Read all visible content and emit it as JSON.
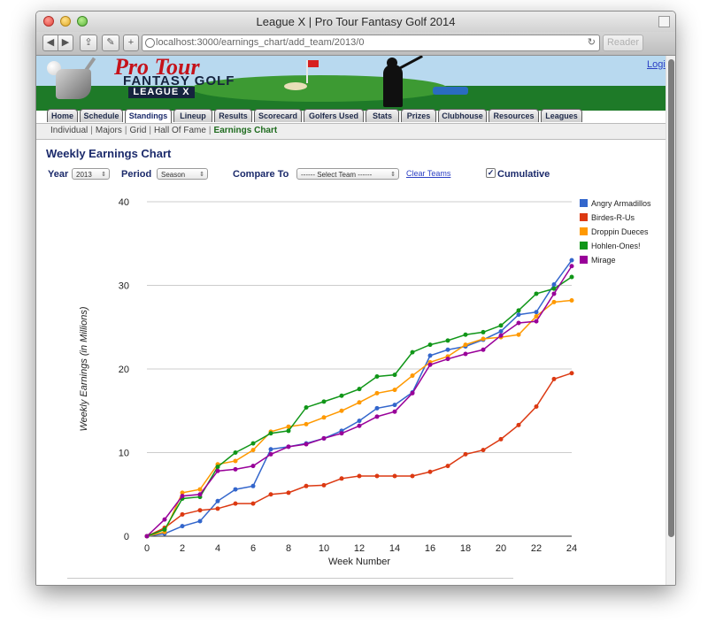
{
  "browser": {
    "window_title": "League X | Pro Tour Fantasy Golf 2014",
    "url": "localhost:3000/earnings_chart/add_team/2013/0",
    "reload_icon": "reload-icon",
    "reader_label": "Reader"
  },
  "banner": {
    "logo_line1": "Pro Tour",
    "logo_line2": "FANTASY GOLF",
    "logo_line3": "LEAGUE X",
    "login_label": "Logi"
  },
  "nav": {
    "tabs": [
      "Home",
      "Schedule",
      "Standings",
      "Lineup",
      "Results",
      "Scorecard",
      "Golfers Used",
      "Stats",
      "Prizes",
      "Clubhouse",
      "Resources",
      "Leagues"
    ],
    "active_tab": "Standings"
  },
  "subnav": {
    "items": [
      "Individual",
      "Majors",
      "Grid",
      "Hall Of Fame",
      "Earnings Chart"
    ],
    "active": "Earnings Chart"
  },
  "page": {
    "title": "Weekly Earnings Chart"
  },
  "controls": {
    "year_label": "Year",
    "year_value": "2013",
    "period_label": "Period",
    "period_value": "Season",
    "compare_label": "Compare To",
    "compare_value": "------ Select Team ------",
    "clear_link": "Clear Teams",
    "cumulative_label": "Cumulative",
    "cumulative_checked": true
  },
  "chart_data": {
    "type": "line",
    "title": "",
    "xlabel": "Week Number",
    "ylabel": "Weekly Earnings (in Millions)",
    "xlim": [
      0,
      24
    ],
    "ylim": [
      0,
      40
    ],
    "xticks": [
      0,
      2,
      4,
      6,
      8,
      10,
      12,
      14,
      16,
      18,
      20,
      22,
      24
    ],
    "yticks": [
      0,
      10,
      20,
      30,
      40
    ],
    "grid": true,
    "legend": "right",
    "x": [
      0,
      1,
      2,
      3,
      4,
      5,
      6,
      7,
      8,
      9,
      10,
      11,
      12,
      13,
      14,
      15,
      16,
      17,
      18,
      19,
      20,
      21,
      22,
      23,
      24
    ],
    "series": [
      {
        "name": "Angry Armadillos",
        "color": "#3366cc",
        "values": [
          0,
          0.3,
          1.2,
          1.8,
          4.2,
          5.6,
          6.0,
          10.4,
          10.7,
          11.1,
          11.7,
          12.6,
          13.8,
          15.3,
          15.7,
          17.2,
          21.6,
          22.3,
          22.7,
          23.5,
          24.5,
          26.5,
          26.8,
          30.1,
          33.0
        ]
      },
      {
        "name": "Birdes-R-Us",
        "color": "#dc3912",
        "values": [
          0,
          1.0,
          2.6,
          3.1,
          3.3,
          3.9,
          3.9,
          5.0,
          5.2,
          6.0,
          6.1,
          6.9,
          7.2,
          7.2,
          7.2,
          7.2,
          7.7,
          8.4,
          9.8,
          10.3,
          11.6,
          13.3,
          15.5,
          18.8,
          19.5
        ]
      },
      {
        "name": "Droppin Dueces",
        "color": "#ff9900",
        "values": [
          0,
          0.5,
          5.2,
          5.6,
          8.6,
          9.0,
          10.3,
          12.5,
          13.1,
          13.4,
          14.2,
          15.0,
          16.0,
          17.1,
          17.5,
          19.2,
          20.8,
          21.5,
          22.9,
          23.6,
          23.8,
          24.1,
          26.3,
          28.0,
          28.2
        ]
      },
      {
        "name": "Hohlen-Ones!",
        "color": "#109618",
        "values": [
          0,
          0.8,
          4.5,
          4.7,
          8.3,
          10.0,
          11.1,
          12.3,
          12.6,
          15.4,
          16.1,
          16.8,
          17.6,
          19.1,
          19.3,
          22.0,
          22.9,
          23.4,
          24.1,
          24.4,
          25.2,
          27.0,
          29.0,
          29.6,
          31.0
        ]
      },
      {
        "name": "Mirage",
        "color": "#990099",
        "values": [
          0,
          2.0,
          4.8,
          5.0,
          7.8,
          8.0,
          8.4,
          9.8,
          10.7,
          11.0,
          11.7,
          12.3,
          13.2,
          14.3,
          14.9,
          17.1,
          20.5,
          21.2,
          21.8,
          22.3,
          24.0,
          25.5,
          25.7,
          29.0,
          32.3
        ]
      }
    ]
  }
}
